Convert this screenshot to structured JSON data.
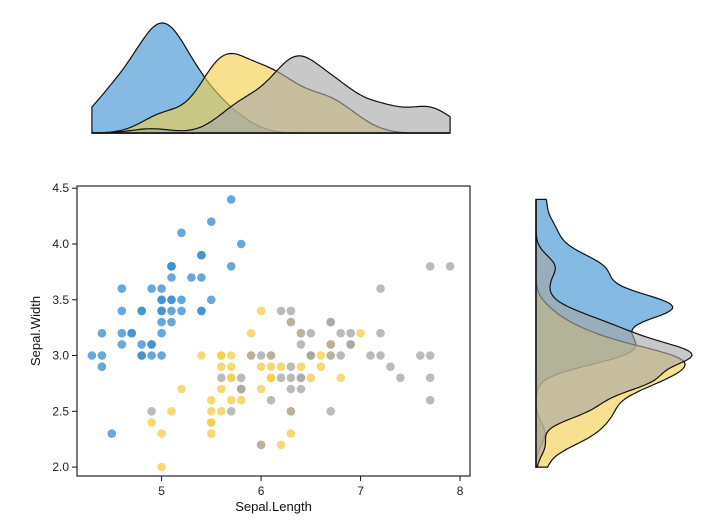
{
  "chart_data": {
    "type": "scatter",
    "subtype": "scatter with marginal density plots",
    "xlabel": "Sepal.Length",
    "ylabel": "Sepal.Width",
    "xlim": [
      4.15,
      8.1
    ],
    "ylim": [
      1.92,
      4.52
    ],
    "xticks": [
      5,
      6,
      7,
      8
    ],
    "yticks": [
      2.0,
      2.5,
      3.0,
      3.5,
      4.0,
      4.5
    ],
    "xtick_labels": [
      "5",
      "6",
      "7",
      "8"
    ],
    "ytick_labels": [
      "2.0",
      "2.5",
      "3.0",
      "3.5",
      "4.0",
      "4.5"
    ],
    "grid": false,
    "legend": "none",
    "marginal_plots": [
      "top: density of Sepal.Length",
      "right: density of Sepal.Width"
    ],
    "series": [
      {
        "color": "#3a8fd1",
        "points": [
          [
            5.1,
            3.5
          ],
          [
            4.9,
            3.0
          ],
          [
            4.7,
            3.2
          ],
          [
            4.6,
            3.1
          ],
          [
            5.0,
            3.6
          ],
          [
            5.4,
            3.9
          ],
          [
            4.6,
            3.4
          ],
          [
            5.0,
            3.4
          ],
          [
            4.4,
            2.9
          ],
          [
            4.9,
            3.1
          ],
          [
            5.4,
            3.7
          ],
          [
            4.8,
            3.4
          ],
          [
            4.8,
            3.0
          ],
          [
            4.3,
            3.0
          ],
          [
            5.8,
            4.0
          ],
          [
            5.7,
            4.4
          ],
          [
            5.4,
            3.9
          ],
          [
            5.1,
            3.5
          ],
          [
            5.7,
            3.8
          ],
          [
            5.1,
            3.8
          ],
          [
            5.4,
            3.4
          ],
          [
            5.1,
            3.7
          ],
          [
            4.6,
            3.6
          ],
          [
            5.1,
            3.3
          ],
          [
            4.8,
            3.4
          ],
          [
            5.0,
            3.0
          ],
          [
            5.0,
            3.4
          ],
          [
            5.2,
            3.5
          ],
          [
            5.2,
            3.4
          ],
          [
            4.7,
            3.2
          ],
          [
            4.8,
            3.1
          ],
          [
            5.4,
            3.4
          ],
          [
            5.2,
            4.1
          ],
          [
            5.5,
            4.2
          ],
          [
            4.9,
            3.1
          ],
          [
            5.0,
            3.2
          ],
          [
            5.5,
            3.5
          ],
          [
            4.9,
            3.6
          ],
          [
            4.4,
            3.0
          ],
          [
            5.1,
            3.4
          ],
          [
            5.0,
            3.5
          ],
          [
            4.5,
            2.3
          ],
          [
            4.4,
            3.2
          ],
          [
            5.0,
            3.5
          ],
          [
            5.1,
            3.8
          ],
          [
            4.8,
            3.0
          ],
          [
            5.1,
            3.8
          ],
          [
            4.6,
            3.2
          ],
          [
            5.3,
            3.7
          ],
          [
            5.0,
            3.3
          ]
        ]
      },
      {
        "color": "#f2cf4a",
        "points": [
          [
            7.0,
            3.2
          ],
          [
            6.4,
            3.2
          ],
          [
            6.9,
            3.1
          ],
          [
            5.5,
            2.3
          ],
          [
            6.5,
            2.8
          ],
          [
            5.7,
            2.8
          ],
          [
            6.3,
            3.3
          ],
          [
            4.9,
            2.4
          ],
          [
            6.6,
            2.9
          ],
          [
            5.2,
            2.7
          ],
          [
            5.0,
            2.0
          ],
          [
            5.9,
            3.0
          ],
          [
            6.0,
            2.2
          ],
          [
            6.1,
            2.9
          ],
          [
            5.6,
            2.9
          ],
          [
            6.7,
            3.1
          ],
          [
            5.6,
            3.0
          ],
          [
            5.8,
            2.7
          ],
          [
            6.2,
            2.2
          ],
          [
            5.6,
            2.5
          ],
          [
            5.9,
            3.2
          ],
          [
            6.1,
            2.8
          ],
          [
            6.3,
            2.5
          ],
          [
            6.1,
            2.8
          ],
          [
            6.4,
            2.9
          ],
          [
            6.6,
            3.0
          ],
          [
            6.8,
            2.8
          ],
          [
            6.7,
            3.0
          ],
          [
            6.0,
            2.9
          ],
          [
            5.7,
            2.6
          ],
          [
            5.5,
            2.4
          ],
          [
            5.5,
            2.4
          ],
          [
            5.8,
            2.7
          ],
          [
            6.0,
            2.7
          ],
          [
            5.4,
            3.0
          ],
          [
            6.0,
            3.4
          ],
          [
            6.7,
            3.1
          ],
          [
            6.3,
            2.3
          ],
          [
            5.6,
            3.0
          ],
          [
            5.5,
            2.5
          ],
          [
            5.5,
            2.6
          ],
          [
            6.1,
            3.0
          ],
          [
            5.8,
            2.6
          ],
          [
            5.0,
            2.3
          ],
          [
            5.6,
            2.7
          ],
          [
            5.7,
            3.0
          ],
          [
            5.7,
            2.9
          ],
          [
            6.2,
            2.9
          ],
          [
            5.1,
            2.5
          ],
          [
            5.7,
            2.8
          ]
        ]
      },
      {
        "color": "#a6a6a6",
        "points": [
          [
            6.3,
            3.3
          ],
          [
            5.8,
            2.7
          ],
          [
            7.1,
            3.0
          ],
          [
            6.3,
            2.9
          ],
          [
            6.5,
            3.0
          ],
          [
            7.6,
            3.0
          ],
          [
            4.9,
            2.5
          ],
          [
            7.3,
            2.9
          ],
          [
            6.7,
            2.5
          ],
          [
            7.2,
            3.6
          ],
          [
            6.5,
            3.2
          ],
          [
            6.4,
            2.7
          ],
          [
            6.8,
            3.0
          ],
          [
            5.7,
            2.5
          ],
          [
            5.8,
            2.8
          ],
          [
            6.4,
            3.2
          ],
          [
            6.5,
            3.0
          ],
          [
            7.7,
            3.8
          ],
          [
            7.7,
            2.6
          ],
          [
            6.0,
            2.2
          ],
          [
            6.9,
            3.2
          ],
          [
            5.6,
            2.8
          ],
          [
            7.7,
            2.8
          ],
          [
            6.3,
            2.7
          ],
          [
            6.7,
            3.3
          ],
          [
            7.2,
            3.2
          ],
          [
            6.2,
            2.8
          ],
          [
            6.1,
            3.0
          ],
          [
            6.4,
            2.8
          ],
          [
            7.2,
            3.0
          ],
          [
            7.4,
            2.8
          ],
          [
            7.9,
            3.8
          ],
          [
            6.4,
            2.8
          ],
          [
            6.3,
            2.8
          ],
          [
            6.1,
            2.6
          ],
          [
            7.7,
            3.0
          ],
          [
            6.3,
            3.4
          ],
          [
            6.4,
            3.1
          ],
          [
            6.0,
            3.0
          ],
          [
            6.9,
            3.1
          ],
          [
            6.7,
            3.1
          ],
          [
            6.9,
            3.1
          ],
          [
            5.8,
            2.7
          ],
          [
            6.8,
            3.2
          ],
          [
            6.7,
            3.3
          ],
          [
            6.7,
            3.0
          ],
          [
            6.3,
            2.5
          ],
          [
            6.5,
            3.0
          ],
          [
            6.2,
            3.4
          ],
          [
            5.9,
            3.0
          ]
        ]
      }
    ]
  }
}
